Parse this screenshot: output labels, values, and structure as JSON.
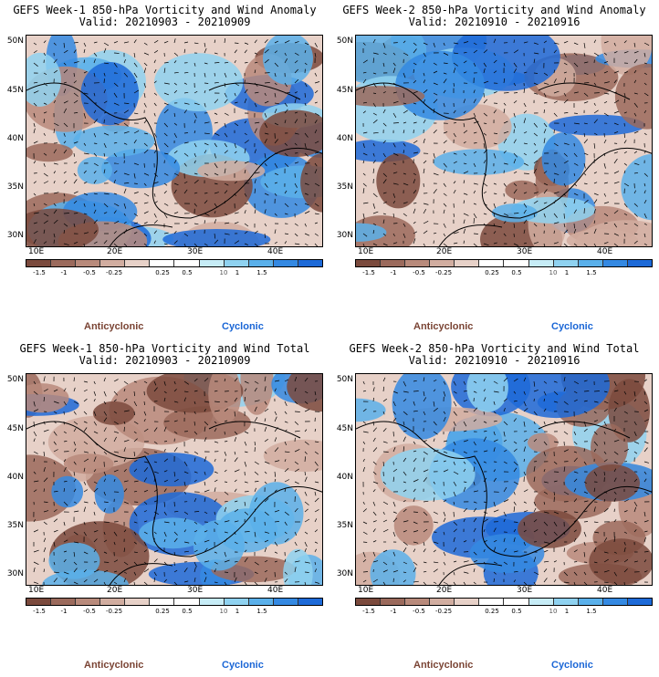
{
  "panels": [
    {
      "title": "GEFS Week-1 850-hPa Vorticity and Wind Anomaly",
      "valid": "Valid: 20210903 - 20210909"
    },
    {
      "title": "GEFS Week-2 850-hPa Vorticity and Wind Anomaly",
      "valid": "Valid: 20210910 - 20210916"
    },
    {
      "title": "GEFS Week-1 850-hPa Vorticity and Wind Total",
      "valid": "Valid: 20210903 - 20210909"
    },
    {
      "title": "GEFS Week-2 850-hPa Vorticity and Wind Total",
      "valid": "Valid: 20210910 - 20210916"
    }
  ],
  "axes": {
    "lat_labels": [
      "50N",
      "45N",
      "40N",
      "35N",
      "30N"
    ],
    "lon_labels": [
      "10E",
      "20E",
      "30E",
      "40E"
    ]
  },
  "colorbar": {
    "labels": [
      "-1.5",
      "-1",
      "-0.5",
      "-0.25",
      "0.25",
      "0.5",
      "1",
      "1.5"
    ],
    "mid_marker": "10",
    "colors": [
      "#7b4a3d",
      "#9b6a5c",
      "#b88a7b",
      "#d1ada0",
      "#e7d1c8",
      "#ffffff",
      "#ffffff",
      "#c6ecf6",
      "#8fd2f0",
      "#5ab0ea",
      "#3489e2",
      "#1d6ad8"
    ]
  },
  "legend": {
    "anticyclonic": "Anticyclonic",
    "cyclonic": "Cyclonic"
  }
}
